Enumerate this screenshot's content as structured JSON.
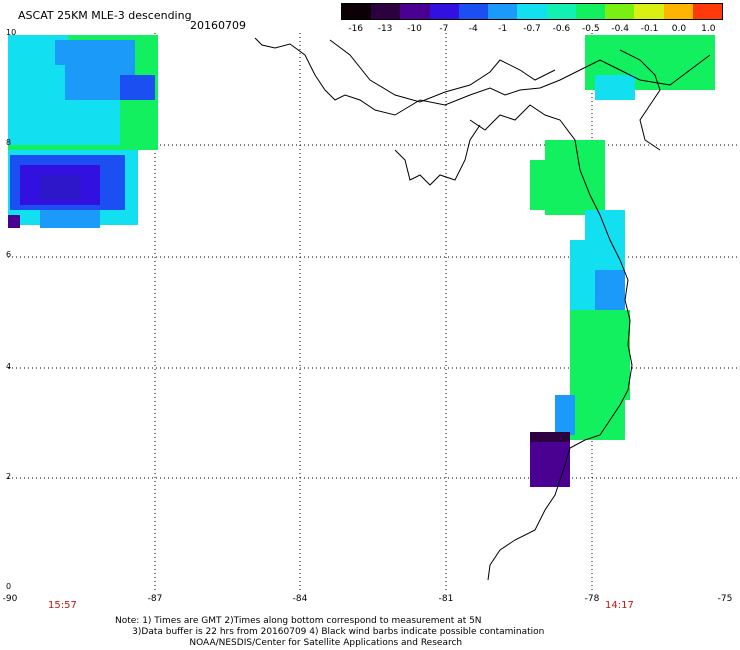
{
  "title": "ASCAT 25KM MLE-3 descending",
  "date": "20160709",
  "colorbar": {
    "labels": [
      "-16",
      "-13",
      "-10",
      "-7",
      "-4",
      "-1",
      "-0.7",
      "-0.6",
      "-0.5",
      "-0.4",
      "-0.1",
      "0.0",
      "1.0"
    ],
    "colors": [
      "#0a0005",
      "#2d0040",
      "#4a0090",
      "#3210e0",
      "#1c4ff2",
      "#1c9afa",
      "#12e0f0",
      "#12f0b4",
      "#12f060",
      "#7af012",
      "#d8f012",
      "#ffb400",
      "#ff3a0a"
    ]
  },
  "axes": {
    "lon_labels": [
      "-90",
      "-87",
      "-84",
      "-81",
      "-78",
      "-75"
    ],
    "lat_labels": [
      "0",
      "2",
      "4",
      "6",
      "8",
      "10"
    ]
  },
  "times": {
    "left": "15:57",
    "right": "14:17"
  },
  "notes": [
    "Note: 1) Times are GMT 2)Times along bottom correspond to measurement at 5N",
    "      3)Data buffer is 22 hrs from 20160709 4) Black wind barbs indicate possible contamination",
    "                          NOAA/NESDIS/Center for Satellite Applications and Research"
  ]
}
